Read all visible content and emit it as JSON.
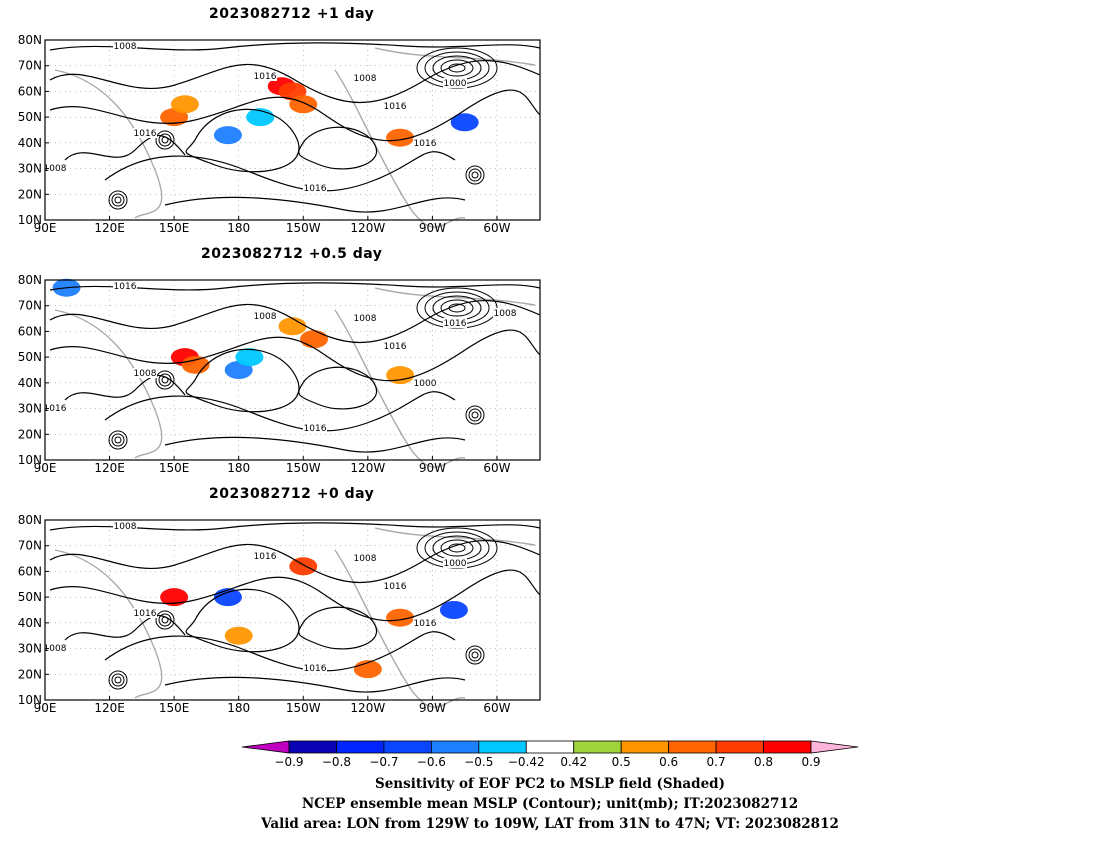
{
  "panels": [
    {
      "title": "2023082712  +1 day",
      "lat_labels": [
        "80N",
        "70N",
        "60N",
        "50N",
        "40N",
        "30N",
        "20N",
        "10N"
      ],
      "lon_labels": [
        "90E",
        "120E",
        "150E",
        "180",
        "150W",
        "120W",
        "90W",
        "60W"
      ],
      "contour_labels": [
        "1008",
        "1016",
        "1008",
        "1016",
        "1000",
        "1016",
        "1016",
        "1008",
        "1016"
      ],
      "shading": [
        {
          "lon": 200,
          "lat": 62,
          "value": 0.8
        },
        {
          "lon": 205,
          "lat": 60,
          "value": 0.7
        },
        {
          "lon": 210,
          "lat": 55,
          "value": 0.6
        },
        {
          "lon": 150,
          "lat": 50,
          "value": 0.6
        },
        {
          "lon": 155,
          "lat": 55,
          "value": 0.5
        },
        {
          "lon": 175,
          "lat": 43,
          "value": -0.6
        },
        {
          "lon": 190,
          "lat": 50,
          "value": -0.5
        },
        {
          "lon": 255,
          "lat": 42,
          "value": 0.6
        },
        {
          "lon": 285,
          "lat": 48,
          "value": -0.7
        }
      ]
    },
    {
      "title": "2023082712  +0.5 day",
      "lat_labels": [
        "80N",
        "70N",
        "60N",
        "50N",
        "40N",
        "30N",
        "20N",
        "10N"
      ],
      "lon_labels": [
        "90E",
        "120E",
        "150E",
        "180",
        "150W",
        "120W",
        "90W",
        "60W"
      ],
      "contour_labels": [
        "1016",
        "1008",
        "1008",
        "1016",
        "1016",
        "1000",
        "1016",
        "1016",
        "1008",
        "1008"
      ],
      "shading": [
        {
          "lon": 155,
          "lat": 50,
          "value": 0.8
        },
        {
          "lon": 160,
          "lat": 47,
          "value": 0.6
        },
        {
          "lon": 180,
          "lat": 45,
          "value": -0.6
        },
        {
          "lon": 185,
          "lat": 50,
          "value": -0.5
        },
        {
          "lon": 205,
          "lat": 62,
          "value": 0.5
        },
        {
          "lon": 215,
          "lat": 57,
          "value": 0.6
        },
        {
          "lon": 255,
          "lat": 43,
          "value": 0.5
        },
        {
          "lon": 100,
          "lat": 77,
          "value": -0.6
        }
      ]
    },
    {
      "title": "2023082712  +0 day",
      "lat_labels": [
        "80N",
        "70N",
        "60N",
        "50N",
        "40N",
        "30N",
        "20N",
        "10N"
      ],
      "lon_labels": [
        "90E",
        "120E",
        "150E",
        "180",
        "150W",
        "120W",
        "90W",
        "60W"
      ],
      "contour_labels": [
        "1008",
        "1016",
        "1008",
        "1016",
        "1000",
        "1016",
        "1016",
        "1008",
        "1016"
      ],
      "shading": [
        {
          "lon": 150,
          "lat": 50,
          "value": 0.8
        },
        {
          "lon": 175,
          "lat": 50,
          "value": -0.7
        },
        {
          "lon": 210,
          "lat": 62,
          "value": 0.7
        },
        {
          "lon": 180,
          "lat": 35,
          "value": 0.5
        },
        {
          "lon": 240,
          "lat": 22,
          "value": 0.6
        },
        {
          "lon": 280,
          "lat": 45,
          "value": -0.7
        },
        {
          "lon": 255,
          "lat": 42,
          "value": 0.6
        }
      ]
    }
  ],
  "colorbar": {
    "labels": [
      "−0.9",
      "−0.8",
      "−0.7",
      "−0.6",
      "−0.5",
      "−0.42",
      "0.42",
      "0.5",
      "0.6",
      "0.7",
      "0.8",
      "0.9"
    ],
    "colors": [
      "#c000c0",
      "#0a00b4",
      "#0025ff",
      "#0a46ff",
      "#1e80ff",
      "#00c8ff",
      "#ffffff",
      "#a0d23c",
      "#ff9600",
      "#ff6400",
      "#ff3c00",
      "#ff0000",
      "#ffb4dc"
    ]
  },
  "caption": [
    "Sensitivity of EOF PC2 to MSLP field (Shaded)",
    "NCEP ensemble mean MSLP (Contour); unit(mb); IT:2023082712",
    "Valid area: LON from 129W to 109W, LAT from 31N to 47N; VT: 2023082812"
  ]
}
